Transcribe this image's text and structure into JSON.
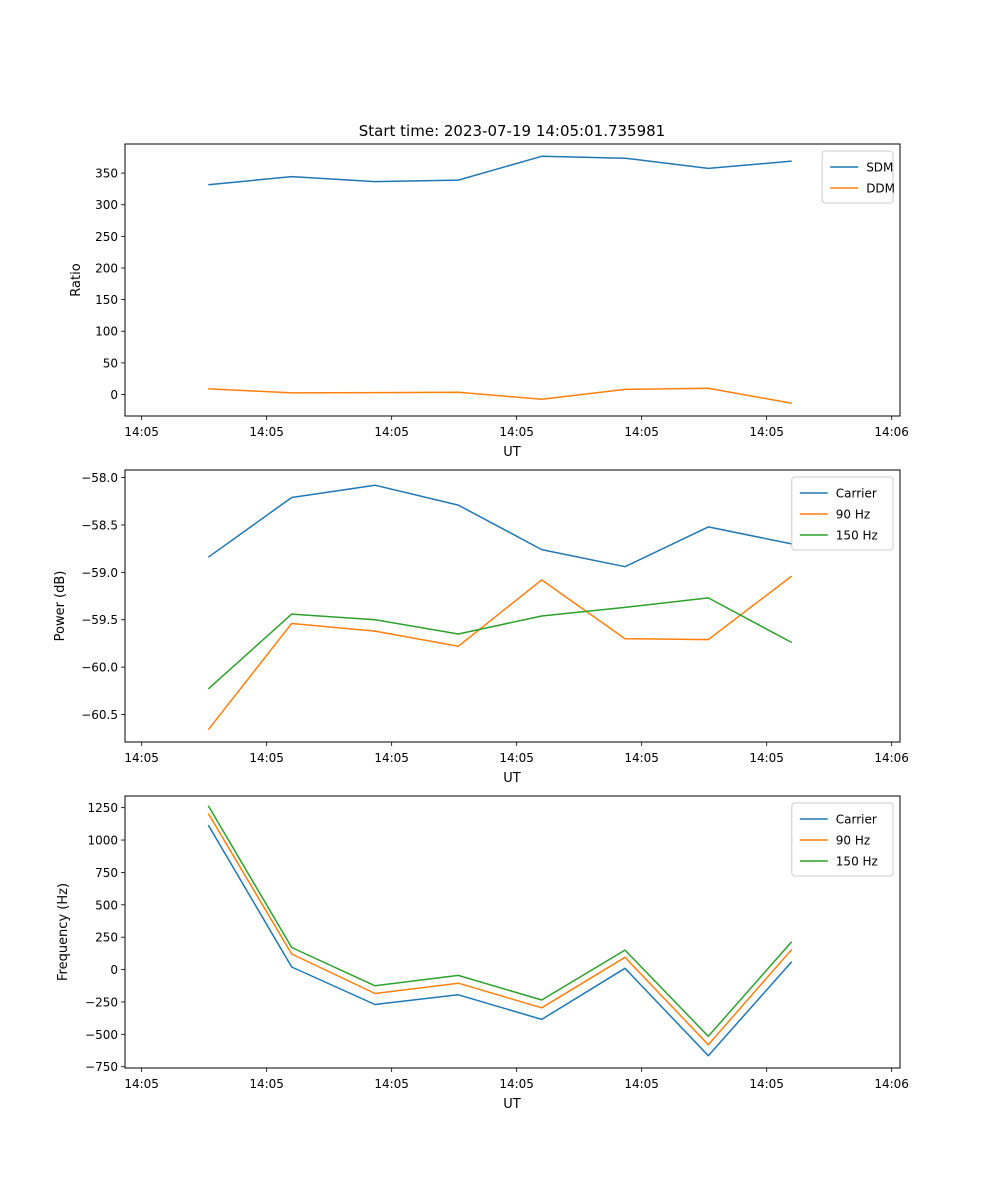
{
  "figure": {
    "title": "Start time: 2023-07-19 14:05:01.735981"
  },
  "colors": {
    "c0": "#1f77b4",
    "c1": "#ff7f0e",
    "c2": "#2ca02c"
  },
  "chart_data": [
    {
      "type": "line",
      "title": "Start time: 2023-07-19 14:05:01.735981",
      "xlabel": "UT",
      "ylabel": "Ratio",
      "xlim": [
        0,
        9.3
      ],
      "ylim": [
        -34,
        396
      ],
      "x": [
        1,
        2,
        3,
        4,
        5,
        6,
        7,
        8
      ],
      "xticks": [
        {
          "value": 0.2,
          "label": "14:05"
        },
        {
          "value": 1.7,
          "label": "14:05"
        },
        {
          "value": 3.2,
          "label": "14:05"
        },
        {
          "value": 4.7,
          "label": "14:05"
        },
        {
          "value": 6.2,
          "label": "14:05"
        },
        {
          "value": 7.7,
          "label": "14:05"
        },
        {
          "value": 9.2,
          "label": "14:06"
        }
      ],
      "yticks": [
        {
          "value": 0,
          "label": "0"
        },
        {
          "value": 50,
          "label": "50"
        },
        {
          "value": 100,
          "label": "100"
        },
        {
          "value": 150,
          "label": "150"
        },
        {
          "value": 200,
          "label": "200"
        },
        {
          "value": 250,
          "label": "250"
        },
        {
          "value": 300,
          "label": "300"
        },
        {
          "value": 350,
          "label": "350"
        }
      ],
      "legend_position": "top-right",
      "series": [
        {
          "name": "SDM",
          "color": "#1f77b4",
          "values": [
            331.5,
            344.5,
            336.5,
            339.0,
            376.5,
            373.5,
            357.5,
            369.0
          ]
        },
        {
          "name": "DDM",
          "color": "#ff7f0e",
          "values": [
            9.0,
            2.5,
            3.0,
            3.5,
            -7.5,
            8.0,
            10.0,
            -14.0
          ]
        }
      ]
    },
    {
      "type": "line",
      "title": "",
      "xlabel": "UT",
      "ylabel": "Power (dB)",
      "xlim": [
        0,
        9.3
      ],
      "ylim": [
        -60.79,
        -57.92
      ],
      "x": [
        1,
        2,
        3,
        4,
        5,
        6,
        7,
        8
      ],
      "xticks": [
        {
          "value": 0.2,
          "label": "14:05"
        },
        {
          "value": 1.7,
          "label": "14:05"
        },
        {
          "value": 3.2,
          "label": "14:05"
        },
        {
          "value": 4.7,
          "label": "14:05"
        },
        {
          "value": 6.2,
          "label": "14:05"
        },
        {
          "value": 7.7,
          "label": "14:05"
        },
        {
          "value": 9.2,
          "label": "14:06"
        }
      ],
      "yticks": [
        {
          "value": -60.5,
          "label": "−60.5"
        },
        {
          "value": -60.0,
          "label": "−60.0"
        },
        {
          "value": -59.5,
          "label": "−59.5"
        },
        {
          "value": -59.0,
          "label": "−59.0"
        },
        {
          "value": -58.5,
          "label": "−58.5"
        },
        {
          "value": -58.0,
          "label": "−58.0"
        }
      ],
      "legend_position": "top-right",
      "series": [
        {
          "name": "Carrier",
          "color": "#1f77b4",
          "values": [
            -58.84,
            -58.21,
            -58.08,
            -58.29,
            -58.76,
            -58.94,
            -58.52,
            -58.7
          ]
        },
        {
          "name": "90 Hz",
          "color": "#ff7f0e",
          "values": [
            -60.66,
            -59.54,
            -59.62,
            -59.78,
            -59.08,
            -59.7,
            -59.71,
            -59.04
          ]
        },
        {
          "name": "150 Hz",
          "color": "#2ca02c",
          "values": [
            -60.23,
            -59.44,
            -59.5,
            -59.65,
            -59.46,
            -59.37,
            -59.27,
            -59.74
          ]
        }
      ]
    },
    {
      "type": "line",
      "title": "",
      "xlabel": "UT",
      "ylabel": "Frequency (Hz)",
      "xlim": [
        0,
        9.3
      ],
      "ylim": [
        -760,
        1340
      ],
      "x": [
        1,
        2,
        3,
        4,
        5,
        6,
        7,
        8
      ],
      "xticks": [
        {
          "value": 0.2,
          "label": "14:05"
        },
        {
          "value": 1.7,
          "label": "14:05"
        },
        {
          "value": 3.2,
          "label": "14:05"
        },
        {
          "value": 4.7,
          "label": "14:05"
        },
        {
          "value": 6.2,
          "label": "14:05"
        },
        {
          "value": 7.7,
          "label": "14:05"
        },
        {
          "value": 9.2,
          "label": "14:06"
        }
      ],
      "yticks": [
        {
          "value": -750,
          "label": "−750"
        },
        {
          "value": -500,
          "label": "−500"
        },
        {
          "value": -250,
          "label": "−250"
        },
        {
          "value": 0,
          "label": "0"
        },
        {
          "value": 250,
          "label": "250"
        },
        {
          "value": 500,
          "label": "500"
        },
        {
          "value": 750,
          "label": "750"
        },
        {
          "value": 1000,
          "label": "1000"
        },
        {
          "value": 1250,
          "label": "1250"
        }
      ],
      "legend_position": "top-right",
      "series": [
        {
          "name": "Carrier",
          "color": "#1f77b4",
          "values": [
            1115,
            20,
            -270,
            -195,
            -385,
            10,
            -665,
            60
          ]
        },
        {
          "name": "90 Hz",
          "color": "#ff7f0e",
          "values": [
            1205,
            120,
            -185,
            -105,
            -295,
            95,
            -580,
            155
          ]
        },
        {
          "name": "150 Hz",
          "color": "#2ca02c",
          "values": [
            1265,
            170,
            -125,
            -45,
            -235,
            150,
            -515,
            215
          ]
        }
      ]
    }
  ]
}
